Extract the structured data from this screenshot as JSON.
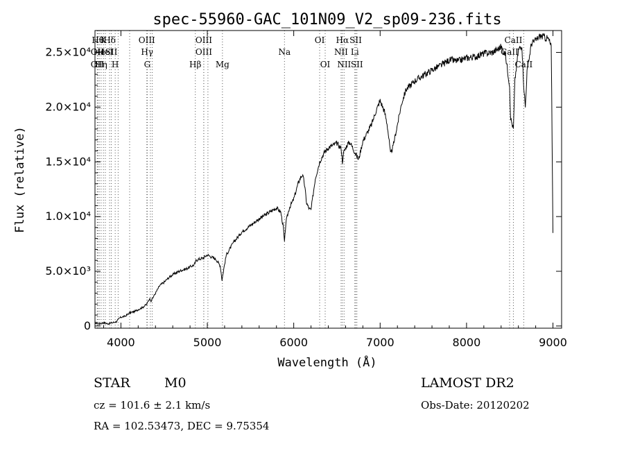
{
  "chart_data": {
    "type": "line",
    "title": "spec-55960-GAC_101N09_V2_sp09-236.fits",
    "xlabel": "Wavelength (Å)",
    "ylabel": "Flux (relative)",
    "xlim": [
      3700,
      9100
    ],
    "ylim": [
      -200,
      27000
    ],
    "grid": false,
    "x_ticks": [
      {
        "value": 4000,
        "label": "4000"
      },
      {
        "value": 5000,
        "label": "5000"
      },
      {
        "value": 6000,
        "label": "6000"
      },
      {
        "value": 7000,
        "label": "7000"
      },
      {
        "value": 8000,
        "label": "8000"
      },
      {
        "value": 9000,
        "label": "9000"
      }
    ],
    "y_ticks": [
      {
        "value": 0,
        "label": "0"
      },
      {
        "value": 5000,
        "label": "5.0×10³"
      },
      {
        "value": 10000,
        "label": "1.0×10⁴"
      },
      {
        "value": 15000,
        "label": "1.5×10⁴"
      },
      {
        "value": 20000,
        "label": "2.0×10⁴"
      },
      {
        "value": 25000,
        "label": "2.5×10⁴"
      }
    ],
    "series": [
      {
        "x": [
          3700,
          3750,
          3800,
          3850,
          3900,
          3950,
          3980,
          4000,
          4050,
          4100,
          4150,
          4200,
          4250,
          4300,
          4330,
          4350,
          4400,
          4450,
          4500,
          4550,
          4600,
          4650,
          4700,
          4750,
          4800,
          4850,
          4870,
          4900,
          4950,
          5000,
          5050,
          5100,
          5150,
          5170,
          5190,
          5220,
          5300,
          5400,
          5500,
          5600,
          5700,
          5800,
          5850,
          5880,
          5893,
          5910,
          5950,
          6000,
          6050,
          6080,
          6100,
          6120,
          6150,
          6180,
          6200,
          6250,
          6270,
          6300,
          6350,
          6400,
          6450,
          6500,
          6550,
          6563,
          6580,
          6620,
          6650,
          6700,
          6750,
          6800,
          6900,
          6950,
          7000,
          7050,
          7080,
          7100,
          7120,
          7150,
          7200,
          7250,
          7300,
          7400,
          7500,
          7600,
          7700,
          7800,
          7900,
          8000,
          8100,
          8200,
          8300,
          8400,
          8450,
          8498,
          8510,
          8542,
          8560,
          8600,
          8640,
          8662,
          8680,
          8700,
          8750,
          8800,
          8850,
          8900,
          8950,
          8980,
          9000
        ],
        "y": [
          300,
          200,
          300,
          200,
          300,
          400,
          700,
          800,
          900,
          1200,
          1300,
          1500,
          1700,
          2000,
          2500,
          2300,
          3000,
          3700,
          4000,
          4400,
          4700,
          4900,
          5100,
          5200,
          5400,
          5600,
          6000,
          6100,
          6200,
          6500,
          6300,
          6100,
          5500,
          4200,
          5200,
          6500,
          7600,
          8600,
          9200,
          9800,
          10300,
          10800,
          10400,
          9000,
          7600,
          9500,
          10800,
          11600,
          13000,
          13600,
          13800,
          13200,
          11200,
          10700,
          10600,
          13500,
          14100,
          15000,
          15800,
          16300,
          16500,
          16700,
          16200,
          15000,
          15900,
          16600,
          16800,
          16000,
          15200,
          16900,
          18400,
          19600,
          20600,
          19600,
          18500,
          17200,
          15700,
          16400,
          18400,
          20400,
          21600,
          22400,
          22900,
          23400,
          23800,
          24300,
          24200,
          24500,
          24600,
          24900,
          25000,
          25500,
          24800,
          22000,
          19000,
          18000,
          22500,
          25200,
          25700,
          22000,
          20000,
          23200,
          25800,
          26100,
          26500,
          26400,
          26200,
          25500,
          8500
        ]
      }
    ],
    "lines": [
      {
        "x": 3734,
        "row": 1,
        "label": "Hθ"
      },
      {
        "x": 3727,
        "row": 2,
        "label": "OII"
      },
      {
        "x": 3727,
        "row": 3,
        "label": "OII"
      },
      {
        "x": 3750,
        "row": 2,
        "label": "He"
      },
      {
        "x": 3771,
        "row": 3,
        "label": "Hη"
      },
      {
        "x": 3798,
        "row": 1,
        "label": "K"
      },
      {
        "x": 3820,
        "row": 2,
        "label": "HeI"
      },
      {
        "x": 3869,
        "row": 1,
        "label": "Hδ"
      },
      {
        "x": 3889,
        "row": 2,
        "label": "SII"
      },
      {
        "x": 3934,
        "row": 3,
        "label": "H"
      },
      {
        "x": 3968,
        "row": 0,
        "label": ""
      },
      {
        "x": 4101,
        "row": 0,
        "label": ""
      },
      {
        "x": 4300,
        "row": 1,
        "label": "OIII"
      },
      {
        "x": 4303,
        "row": 2,
        "label": "Hγ"
      },
      {
        "x": 4305,
        "row": 3,
        "label": "G"
      },
      {
        "x": 4341,
        "row": 0,
        "label": ""
      },
      {
        "x": 4363,
        "row": 0,
        "label": ""
      },
      {
        "x": 4861,
        "row": 3,
        "label": "Hβ"
      },
      {
        "x": 4959,
        "row": 1,
        "label": "OIII"
      },
      {
        "x": 4959,
        "row": 2,
        "label": "OIII"
      },
      {
        "x": 5007,
        "row": 0,
        "label": ""
      },
      {
        "x": 5175,
        "row": 3,
        "label": "Mg"
      },
      {
        "x": 5893,
        "row": 2,
        "label": "Na"
      },
      {
        "x": 6300,
        "row": 1,
        "label": "OI"
      },
      {
        "x": 6364,
        "row": 3,
        "label": "OI"
      },
      {
        "x": 6548,
        "row": 2,
        "label": "NII"
      },
      {
        "x": 6563,
        "row": 1,
        "label": "Hα"
      },
      {
        "x": 6583,
        "row": 3,
        "label": "NII"
      },
      {
        "x": 6707,
        "row": 2,
        "label": "Li"
      },
      {
        "x": 6717,
        "row": 1,
        "label": "SII"
      },
      {
        "x": 6731,
        "row": 3,
        "label": "SII"
      },
      {
        "x": 8498,
        "row": 2,
        "label": "CaII"
      },
      {
        "x": 8542,
        "row": 1,
        "label": "CaII"
      },
      {
        "x": 8662,
        "row": 3,
        "label": "CaII"
      }
    ]
  },
  "info": {
    "class_label": "STAR",
    "subclass_label": "M0",
    "survey": "LAMOST DR2",
    "cz": "cz = 101.6 ± 2.1 km/s",
    "obs_date": "Obs-Date: 20120202",
    "radec": "RA = 102.53473, DEC =   9.75354"
  }
}
